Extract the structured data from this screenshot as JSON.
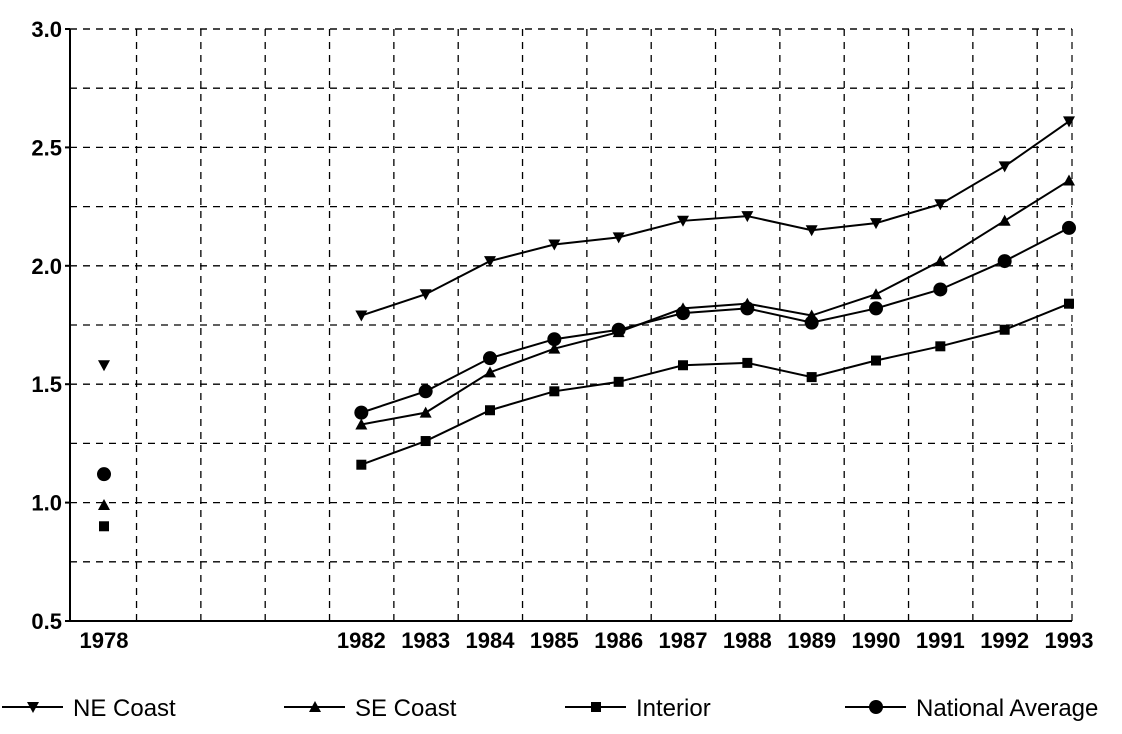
{
  "chart_data": {
    "type": "line",
    "title": "",
    "xlabel": "",
    "ylabel": "",
    "ylim": [
      0.5,
      3.0
    ],
    "yticks": [
      "0.5",
      "1.0",
      "1.5",
      "2.0",
      "2.5",
      "3.0"
    ],
    "grid": true,
    "legend_position": "bottom",
    "x_tick_labels": [
      "1978",
      "1982",
      "1983",
      "1984",
      "1985",
      "1986",
      "1987",
      "1988",
      "1989",
      "1990",
      "1991",
      "1992",
      "1993"
    ],
    "x": [
      1978,
      1982,
      1983,
      1984,
      1985,
      1986,
      1987,
      1988,
      1989,
      1990,
      1991,
      1992,
      1993
    ],
    "series": [
      {
        "name": "NE Coast",
        "marker": "triangle-down",
        "values": [
          1.58,
          1.79,
          1.88,
          2.02,
          2.09,
          2.12,
          2.19,
          2.21,
          2.15,
          2.18,
          2.26,
          2.42,
          2.61
        ]
      },
      {
        "name": "SE Coast",
        "marker": "triangle-up",
        "values": [
          0.99,
          1.33,
          1.38,
          1.55,
          1.65,
          1.72,
          1.82,
          1.84,
          1.79,
          1.88,
          2.02,
          2.19,
          2.36
        ]
      },
      {
        "name": "Interior",
        "marker": "square",
        "values": [
          0.9,
          1.16,
          1.26,
          1.39,
          1.47,
          1.51,
          1.58,
          1.59,
          1.53,
          1.6,
          1.66,
          1.73,
          1.84
        ]
      },
      {
        "name": "National Average",
        "marker": "circle",
        "values": [
          1.12,
          1.38,
          1.47,
          1.61,
          1.69,
          1.73,
          1.8,
          1.82,
          1.76,
          1.82,
          1.9,
          2.02,
          2.16
        ]
      }
    ]
  }
}
